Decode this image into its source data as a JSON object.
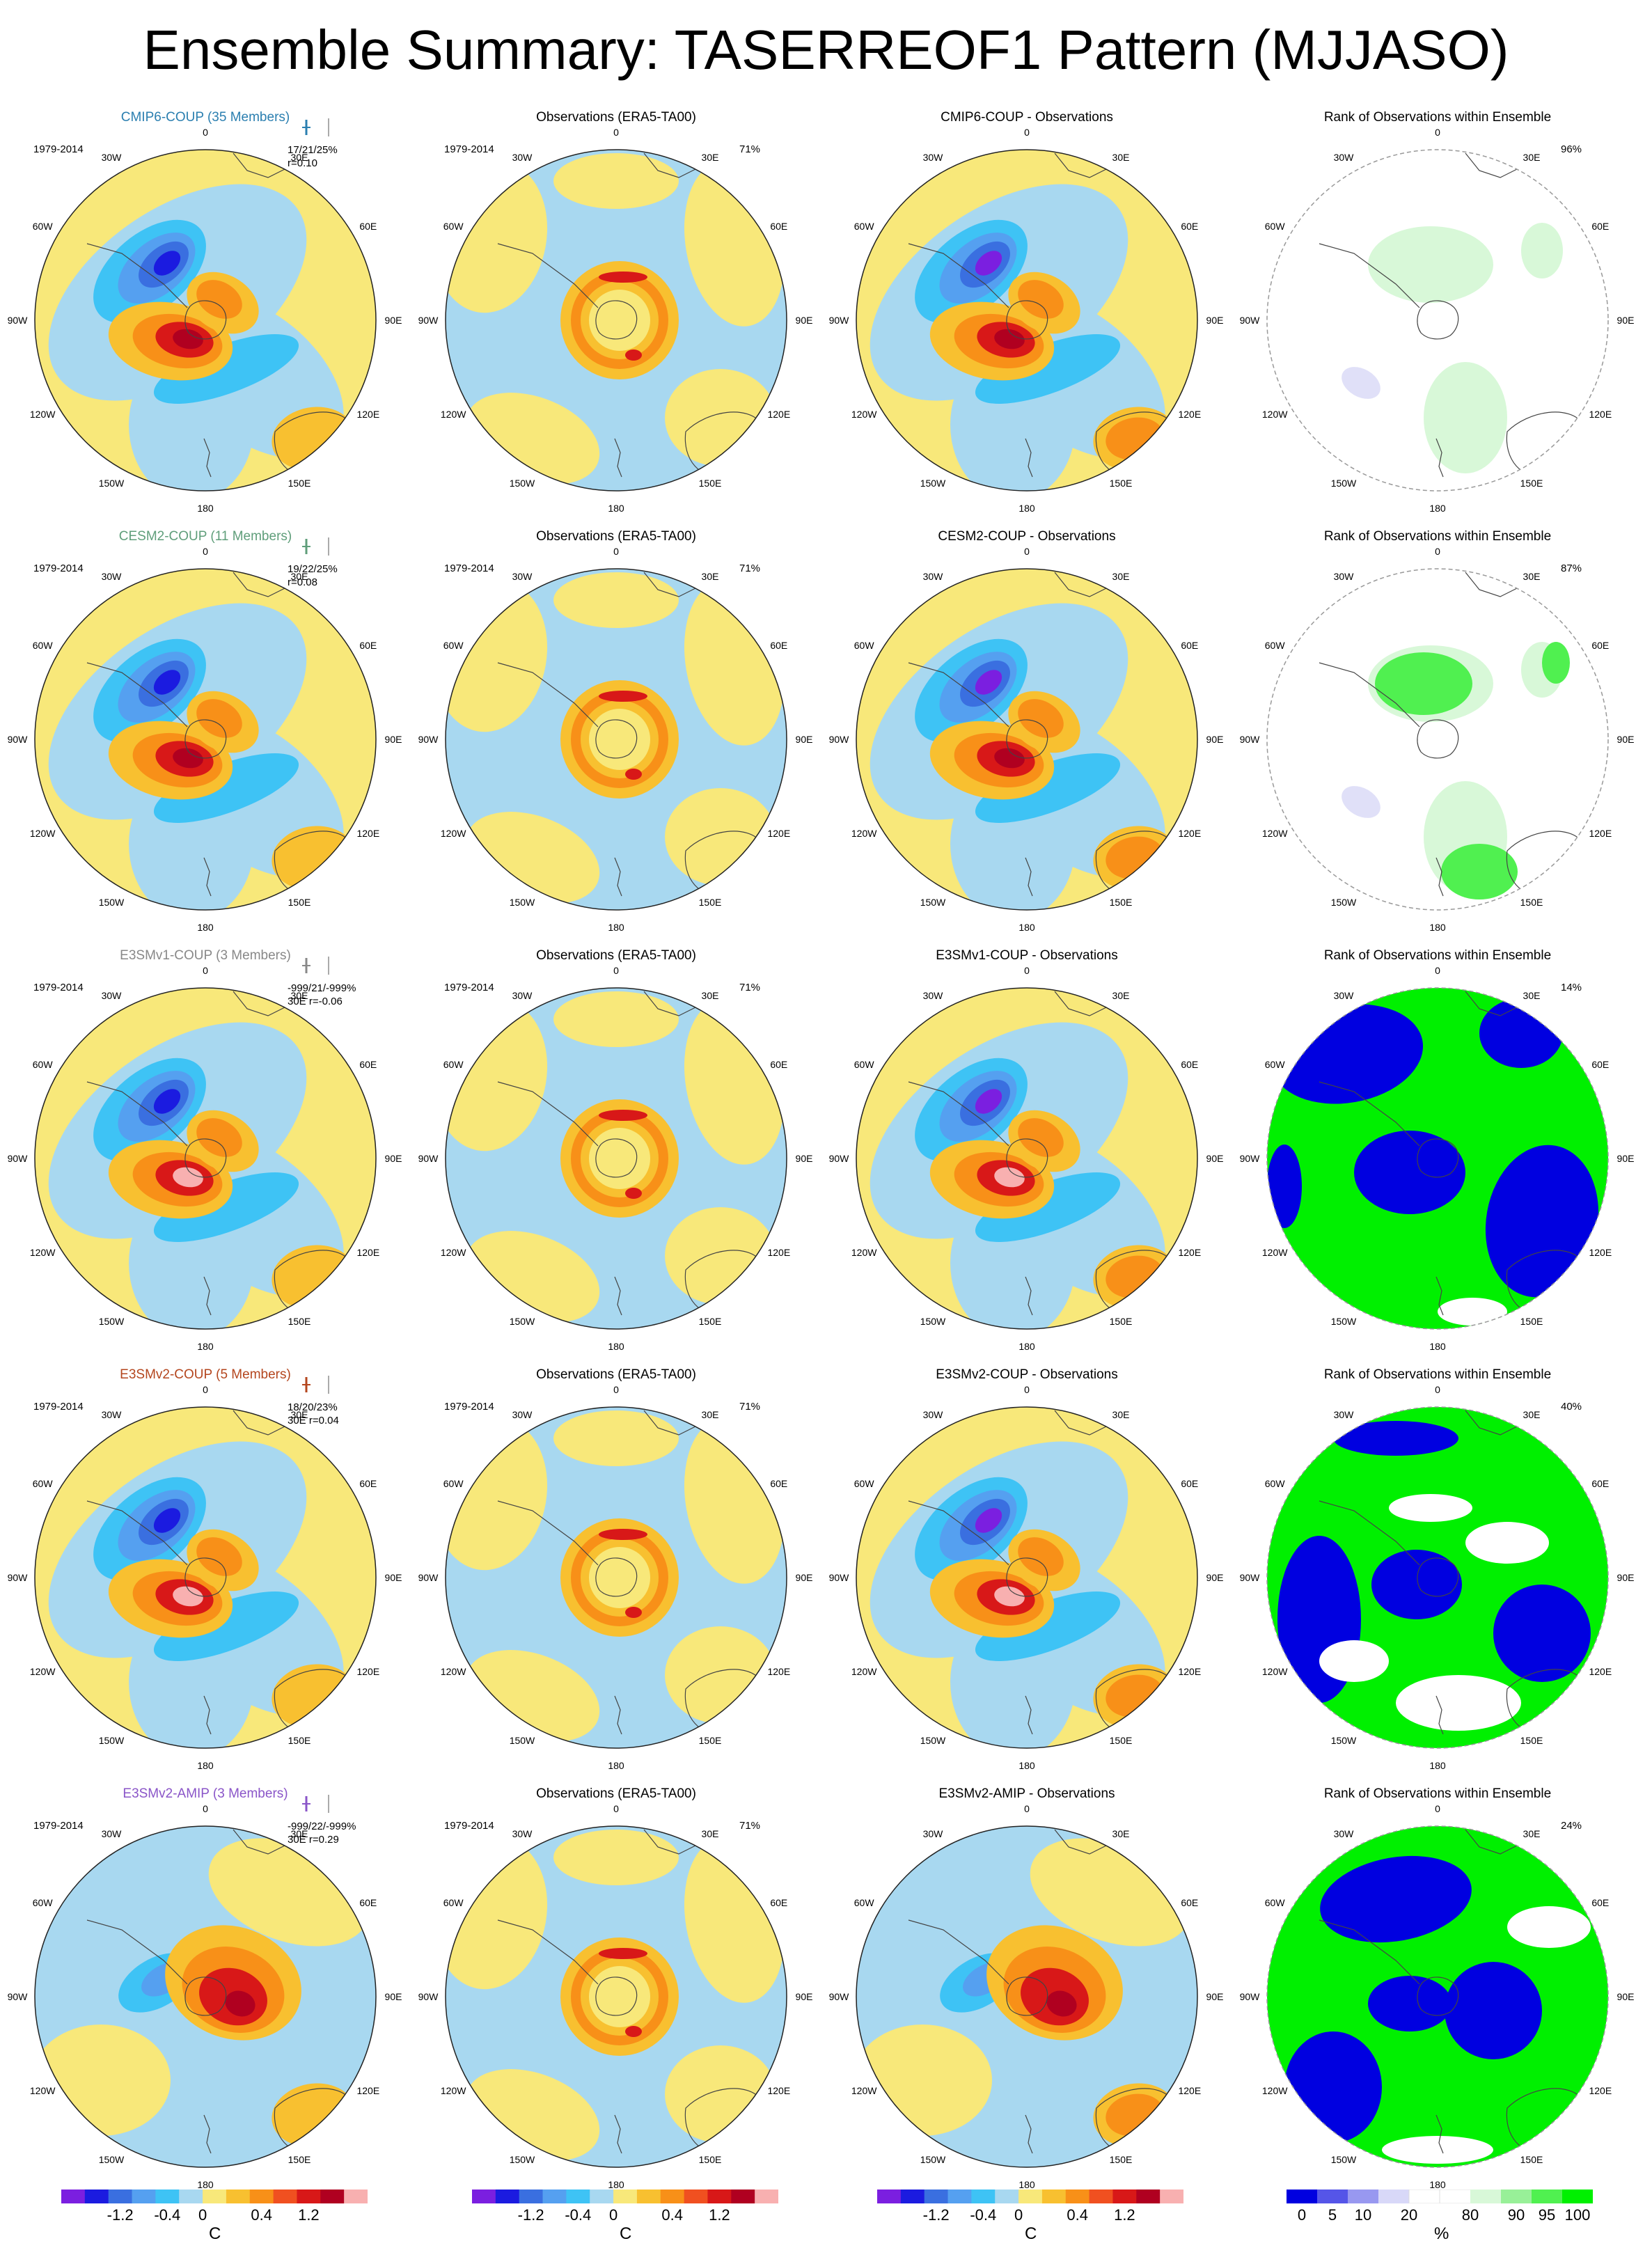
{
  "title": "Ensemble Summary: TASERREOF1 Pattern (MJJASO)",
  "years": "1979-2014",
  "lon_labels": [
    "0",
    "30E",
    "60E",
    "90E",
    "120E",
    "150E",
    "180",
    "150W",
    "120W",
    "90W",
    "60W",
    "30W"
  ],
  "rows": [
    {
      "name": "CMIP6-COUP (35 Members)",
      "model": "CMIP6-COUP",
      "color": "#2b7fb0",
      "stats1": "17/21/25%",
      "stats2": "r=0.10",
      "obs_pct": "71%",
      "rank_pct": "96%",
      "diff_title": "CMIP6-COUP - Observations"
    },
    {
      "name": "CESM2-COUP (11 Members)",
      "model": "CESM2-COUP",
      "color": "#5f9e7a",
      "stats1": "19/22/25%",
      "stats2": "r=0.08",
      "obs_pct": "71%",
      "rank_pct": "87%",
      "diff_title": "CESM2-COUP - Observations"
    },
    {
      "name": "E3SMv1-COUP (3 Members)",
      "model": "E3SMv1-COUP",
      "color": "#888888",
      "stats1": "-999/21/-999%",
      "stats2": "30E r=-0.06",
      "obs_pct": "71%",
      "rank_pct": "14%",
      "diff_title": "E3SMv1-COUP - Observations"
    },
    {
      "name": "E3SMv2-COUP (5 Members)",
      "model": "E3SMv2-COUP",
      "color": "#b4461e",
      "stats1": "18/20/23%",
      "stats2": "30E r=0.04",
      "obs_pct": "71%",
      "rank_pct": "40%",
      "diff_title": "E3SMv2-COUP - Observations"
    },
    {
      "name": "E3SMv2-AMIP (3 Members)",
      "model": "E3SMv2-AMIP",
      "color": "#8a55c8",
      "stats1": "-999/22/-999%",
      "stats2": "30E r=0.29",
      "obs_pct": "71%",
      "rank_pct": "24%",
      "diff_title": "E3SMv2-AMIP - Observations"
    }
  ],
  "obs_title": "Observations (ERA5-TA00)",
  "rank_title": "Rank of Observations within Ensemble",
  "colorbars": {
    "temp": {
      "unit": "C",
      "labels": [
        "-1.2",
        "-0.4",
        "0",
        "0.4",
        "1.2"
      ],
      "colors": [
        "#7b1fe0",
        "#1b1be0",
        "#3a6fe0",
        "#55a0f0",
        "#3ec3f5",
        "#a8d8f0",
        "#f8e87a",
        "#f8c030",
        "#f89018",
        "#f05020",
        "#d81818",
        "#b00020",
        "#f8b0b0"
      ]
    },
    "rank": {
      "unit": "%",
      "labels": [
        "0",
        "5",
        "10",
        "20",
        "80",
        "90",
        "95",
        "100"
      ],
      "colors": [
        "#0000e0",
        "#5555e8",
        "#9898f0",
        "#d8d8f8",
        "#ffffff",
        "#ffffff",
        "#d8f8d8",
        "#98f098",
        "#50f050",
        "#00f000"
      ]
    }
  },
  "chart_data": {
    "type": "heatmap",
    "description_panels": [
      "model ensemble mean",
      "observations",
      "model - observations",
      "rank of observations"
    ],
    "period": "1979-2014",
    "season": "MJJASO",
    "projection": "south polar stereographic",
    "temperature_levels": [
      -1.6,
      -1.2,
      -0.8,
      -0.4,
      -0.2,
      0,
      0.2,
      0.4,
      0.8,
      1.2,
      1.6
    ],
    "rank_levels": [
      0,
      5,
      10,
      20,
      80,
      90,
      95,
      100
    ],
    "rows": [
      {
        "model": "CMIP6-COUP",
        "members": 35,
        "stats": "17/21/25%",
        "r": 0.1,
        "rank_pct": 96
      },
      {
        "model": "CESM2-COUP",
        "members": 11,
        "stats": "19/22/25%",
        "r": 0.08,
        "rank_pct": 87
      },
      {
        "model": "E3SMv1-COUP",
        "members": 3,
        "stats": "-999/21/-999%",
        "r": -0.06,
        "rank_pct": 14
      },
      {
        "model": "E3SMv2-COUP",
        "members": 5,
        "stats": "18/20/23%",
        "r": 0.04,
        "rank_pct": 40
      },
      {
        "model": "E3SMv2-AMIP",
        "members": 3,
        "stats": "-999/22/-999%",
        "r": 0.29,
        "rank_pct": 24
      }
    ]
  }
}
